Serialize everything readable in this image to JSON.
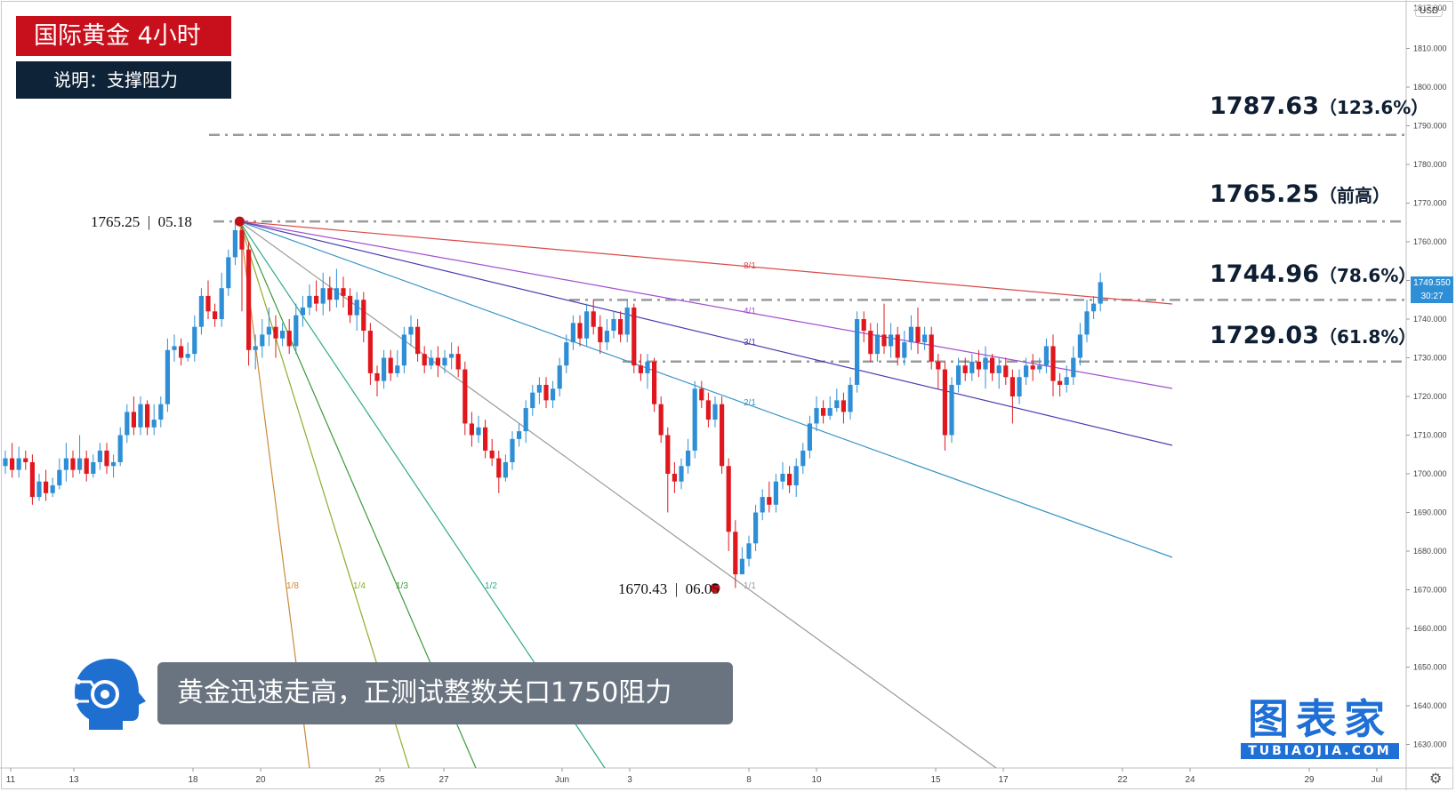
{
  "header": {
    "title": "国际黄金  4小时",
    "subtitle": "说明：支撑阻力"
  },
  "levels": [
    {
      "price": "1787.63",
      "tag": "（123.6%）"
    },
    {
      "price": "1765.25",
      "tag": "（前高）"
    },
    {
      "price": "1744.96",
      "tag": "（78.6%）"
    },
    {
      "price": "1729.03",
      "tag": "（61.8%）"
    }
  ],
  "points": {
    "high": {
      "price": "1765.25",
      "date": "05.18"
    },
    "low": {
      "price": "1670.43",
      "date": "06.05"
    }
  },
  "caption": "黄金迅速走高，正测试整数关口1750阻力",
  "brand": {
    "cn": "图表家",
    "en": "TUBIAOJIA.COM"
  },
  "price_axis": {
    "currency": "USD",
    "current_price": "1749.550",
    "countdown": "30:27"
  },
  "colors": {
    "up": "#2f8fd6",
    "down": "#e0181e",
    "title_bg": "#c8101c",
    "sub_bg": "#0e2238",
    "brand": "#1e6fd6"
  },
  "icons": {
    "settings": "gear-icon",
    "logo": "head-logo-icon"
  },
  "chart_data": {
    "type": "candlestick",
    "y_axis": {
      "range": [
        1625,
        1820
      ],
      "ticks": [
        1630,
        1640,
        1650,
        1660,
        1670,
        1680,
        1690,
        1700,
        1710,
        1720,
        1730,
        1740,
        1750,
        1760,
        1770,
        1780,
        1790,
        1800,
        1810
      ],
      "extra_tick": "1817.000"
    },
    "x_axis": {
      "ticks": [
        "11",
        "13",
        "18",
        "20",
        "25",
        "27",
        "Jun",
        "3",
        "8",
        "10",
        "15",
        "17",
        "22",
        "24",
        "29",
        "Jul"
      ]
    },
    "horizontal_levels": [
      1787.63,
      1765.25,
      1744.96,
      1729.03
    ],
    "gann_fan": {
      "origin": {
        "date": "05.18",
        "price": 1765.25
      },
      "lines": [
        {
          "label": "8/1",
          "color": "#d94a4a"
        },
        {
          "label": "4/1",
          "color": "#a24fd0"
        },
        {
          "label": "3/1",
          "color": "#4b3fb0"
        },
        {
          "label": "2/1",
          "color": "#3a95c6"
        },
        {
          "label": "1/1",
          "color": "#9a9a9a"
        },
        {
          "label": "1/2",
          "color": "#2eaa88"
        },
        {
          "label": "1/3",
          "color": "#3a9a3a"
        },
        {
          "label": "1/4",
          "color": "#8aae2a"
        },
        {
          "label": "1/8",
          "color": "#c98a3a"
        }
      ]
    },
    "candles": [
      [
        1702,
        1704,
        1706,
        1700
      ],
      [
        1704,
        1701,
        1708,
        1699
      ],
      [
        1701,
        1704,
        1707,
        1699
      ],
      [
        1704,
        1703,
        1706,
        1701
      ],
      [
        1703,
        1694,
        1705,
        1692
      ],
      [
        1694,
        1698,
        1700,
        1693
      ],
      [
        1698,
        1695,
        1701,
        1693
      ],
      [
        1695,
        1697,
        1699,
        1694
      ],
      [
        1697,
        1701,
        1704,
        1696
      ],
      [
        1701,
        1704,
        1708,
        1698
      ],
      [
        1704,
        1701,
        1706,
        1699
      ],
      [
        1701,
        1704,
        1710,
        1700
      ],
      [
        1704,
        1700,
        1706,
        1698
      ],
      [
        1700,
        1703,
        1705,
        1699
      ],
      [
        1703,
        1706,
        1708,
        1701
      ],
      [
        1706,
        1702,
        1708,
        1700
      ],
      [
        1702,
        1703,
        1705,
        1699
      ],
      [
        1703,
        1710,
        1712,
        1702
      ],
      [
        1710,
        1716,
        1718,
        1708
      ],
      [
        1716,
        1712,
        1720,
        1710
      ],
      [
        1712,
        1718,
        1720,
        1710
      ],
      [
        1718,
        1712,
        1719,
        1710
      ],
      [
        1712,
        1714,
        1718,
        1710
      ],
      [
        1714,
        1718,
        1720,
        1712
      ],
      [
        1718,
        1732,
        1735,
        1716
      ],
      [
        1732,
        1733,
        1736,
        1729
      ],
      [
        1733,
        1730,
        1735,
        1728
      ],
      [
        1730,
        1731,
        1734,
        1729
      ],
      [
        1731,
        1738,
        1741,
        1729
      ],
      [
        1738,
        1746,
        1748,
        1736
      ],
      [
        1746,
        1742,
        1750,
        1740
      ],
      [
        1742,
        1740,
        1744,
        1738
      ],
      [
        1740,
        1748,
        1752,
        1738
      ],
      [
        1748,
        1756,
        1758,
        1746
      ],
      [
        1756,
        1763,
        1765.25,
        1754
      ],
      [
        1763,
        1758,
        1764,
        1742
      ],
      [
        1758,
        1732,
        1760,
        1728
      ],
      [
        1732,
        1733,
        1736,
        1727
      ],
      [
        1733,
        1736,
        1740,
        1730
      ],
      [
        1736,
        1738,
        1743,
        1733
      ],
      [
        1738,
        1735,
        1741,
        1730
      ],
      [
        1735,
        1737,
        1739,
        1733
      ],
      [
        1737,
        1733,
        1740,
        1731
      ],
      [
        1733,
        1741,
        1744,
        1731
      ],
      [
        1741,
        1743,
        1746,
        1738
      ],
      [
        1743,
        1746,
        1749,
        1741
      ],
      [
        1746,
        1744,
        1750,
        1742
      ],
      [
        1744,
        1748,
        1752,
        1741
      ],
      [
        1748,
        1745,
        1751,
        1742
      ],
      [
        1745,
        1748,
        1753,
        1743
      ],
      [
        1748,
        1746,
        1751,
        1743
      ],
      [
        1746,
        1741,
        1748,
        1739
      ],
      [
        1741,
        1745,
        1747,
        1737
      ],
      [
        1745,
        1737,
        1747,
        1734
      ],
      [
        1737,
        1726,
        1739,
        1723
      ],
      [
        1726,
        1724,
        1728,
        1720
      ],
      [
        1724,
        1730,
        1732,
        1722
      ],
      [
        1730,
        1726,
        1732,
        1724
      ],
      [
        1726,
        1728,
        1732,
        1725
      ],
      [
        1728,
        1736,
        1738,
        1726
      ],
      [
        1736,
        1738,
        1741,
        1733
      ],
      [
        1738,
        1731,
        1740,
        1729
      ],
      [
        1731,
        1728,
        1733,
        1726
      ],
      [
        1728,
        1730,
        1732,
        1727
      ],
      [
        1730,
        1728,
        1733,
        1725
      ],
      [
        1728,
        1730,
        1732,
        1726
      ],
      [
        1730,
        1731,
        1734,
        1727
      ],
      [
        1731,
        1727,
        1733,
        1725
      ],
      [
        1727,
        1713,
        1729,
        1710
      ],
      [
        1713,
        1710,
        1716,
        1707
      ],
      [
        1710,
        1712,
        1715,
        1708
      ],
      [
        1712,
        1706,
        1714,
        1704
      ],
      [
        1706,
        1704,
        1709,
        1702
      ],
      [
        1704,
        1699,
        1706,
        1695
      ],
      [
        1699,
        1703,
        1705,
        1698
      ],
      [
        1703,
        1709,
        1711,
        1701
      ],
      [
        1709,
        1711,
        1713,
        1707
      ],
      [
        1711,
        1717,
        1719,
        1708
      ],
      [
        1717,
        1721,
        1723,
        1715
      ],
      [
        1721,
        1723,
        1725,
        1718
      ],
      [
        1723,
        1719,
        1725,
        1717
      ],
      [
        1719,
        1722,
        1724,
        1717
      ],
      [
        1722,
        1728,
        1730,
        1720
      ],
      [
        1728,
        1734,
        1736,
        1726
      ],
      [
        1734,
        1739,
        1741,
        1732
      ],
      [
        1739,
        1735,
        1741,
        1733
      ],
      [
        1735,
        1742,
        1744,
        1733
      ],
      [
        1742,
        1738,
        1745,
        1736
      ],
      [
        1738,
        1734,
        1741,
        1731
      ],
      [
        1734,
        1737,
        1740,
        1732
      ],
      [
        1737,
        1740,
        1742,
        1735
      ],
      [
        1740,
        1736,
        1742,
        1734
      ],
      [
        1736,
        1743,
        1745,
        1734
      ],
      [
        1743,
        1728,
        1744,
        1726
      ],
      [
        1728,
        1726,
        1731,
        1724
      ],
      [
        1726,
        1729,
        1731,
        1722
      ],
      [
        1729,
        1718,
        1730,
        1716
      ],
      [
        1718,
        1710,
        1720,
        1708
      ],
      [
        1710,
        1700,
        1712,
        1690
      ],
      [
        1700,
        1698,
        1703,
        1695
      ],
      [
        1698,
        1702,
        1704,
        1696
      ],
      [
        1702,
        1706,
        1709,
        1700
      ],
      [
        1706,
        1722,
        1724,
        1704
      ],
      [
        1722,
        1719,
        1724,
        1717
      ],
      [
        1719,
        1714,
        1721,
        1712
      ],
      [
        1714,
        1718,
        1720,
        1712
      ],
      [
        1718,
        1702,
        1720,
        1700
      ],
      [
        1702,
        1685,
        1704,
        1680
      ],
      [
        1685,
        1674,
        1688,
        1670.43
      ],
      [
        1674,
        1678,
        1681,
        1676
      ],
      [
        1678,
        1682,
        1684,
        1676
      ],
      [
        1682,
        1690,
        1692,
        1680
      ],
      [
        1690,
        1694,
        1696,
        1688
      ],
      [
        1694,
        1692,
        1698,
        1690
      ],
      [
        1692,
        1698,
        1700,
        1690
      ],
      [
        1698,
        1700,
        1703,
        1696
      ],
      [
        1700,
        1697,
        1702,
        1695
      ],
      [
        1697,
        1702,
        1704,
        1694
      ],
      [
        1702,
        1706,
        1708,
        1700
      ],
      [
        1706,
        1713,
        1715,
        1704
      ],
      [
        1713,
        1717,
        1720,
        1711
      ],
      [
        1717,
        1715,
        1719,
        1713
      ],
      [
        1715,
        1717,
        1720,
        1714
      ],
      [
        1717,
        1719,
        1722,
        1716
      ],
      [
        1719,
        1716,
        1721,
        1713
      ],
      [
        1716,
        1723,
        1725,
        1714
      ],
      [
        1723,
        1740,
        1742,
        1721
      ],
      [
        1740,
        1737,
        1742,
        1734
      ],
      [
        1737,
        1731,
        1739,
        1729
      ],
      [
        1731,
        1736,
        1739,
        1729
      ],
      [
        1736,
        1733,
        1744,
        1731
      ],
      [
        1733,
        1736,
        1739,
        1730
      ],
      [
        1736,
        1730,
        1738,
        1728
      ],
      [
        1730,
        1734,
        1737,
        1728
      ],
      [
        1734,
        1738,
        1741,
        1732
      ],
      [
        1738,
        1734,
        1743,
        1731
      ],
      [
        1734,
        1736,
        1738,
        1732
      ],
      [
        1736,
        1729,
        1738,
        1727
      ],
      [
        1729,
        1727,
        1731,
        1722
      ],
      [
        1727,
        1710,
        1729,
        1706
      ],
      [
        1710,
        1723,
        1725,
        1708
      ],
      [
        1723,
        1728,
        1730,
        1721
      ],
      [
        1728,
        1726,
        1730,
        1724
      ],
      [
        1726,
        1729,
        1731,
        1724
      ],
      [
        1729,
        1727,
        1732,
        1725
      ],
      [
        1727,
        1730,
        1733,
        1722
      ],
      [
        1730,
        1726,
        1731,
        1724
      ],
      [
        1726,
        1728,
        1730,
        1722
      ],
      [
        1728,
        1725,
        1730,
        1723
      ],
      [
        1725,
        1720,
        1727,
        1713
      ],
      [
        1720,
        1725,
        1727,
        1718
      ],
      [
        1725,
        1728,
        1730,
        1723
      ],
      [
        1728,
        1727,
        1731,
        1724
      ],
      [
        1727,
        1728,
        1730,
        1726
      ],
      [
        1728,
        1733,
        1735,
        1726
      ],
      [
        1733,
        1724,
        1736,
        1720
      ],
      [
        1724,
        1723,
        1726,
        1720
      ],
      [
        1723,
        1725,
        1728,
        1721
      ],
      [
        1725,
        1730,
        1733,
        1723
      ],
      [
        1730,
        1736,
        1739,
        1728
      ],
      [
        1736,
        1742,
        1745,
        1734
      ],
      [
        1742,
        1744,
        1746,
        1740
      ],
      [
        1744,
        1749.55,
        1752,
        1742
      ]
    ]
  }
}
